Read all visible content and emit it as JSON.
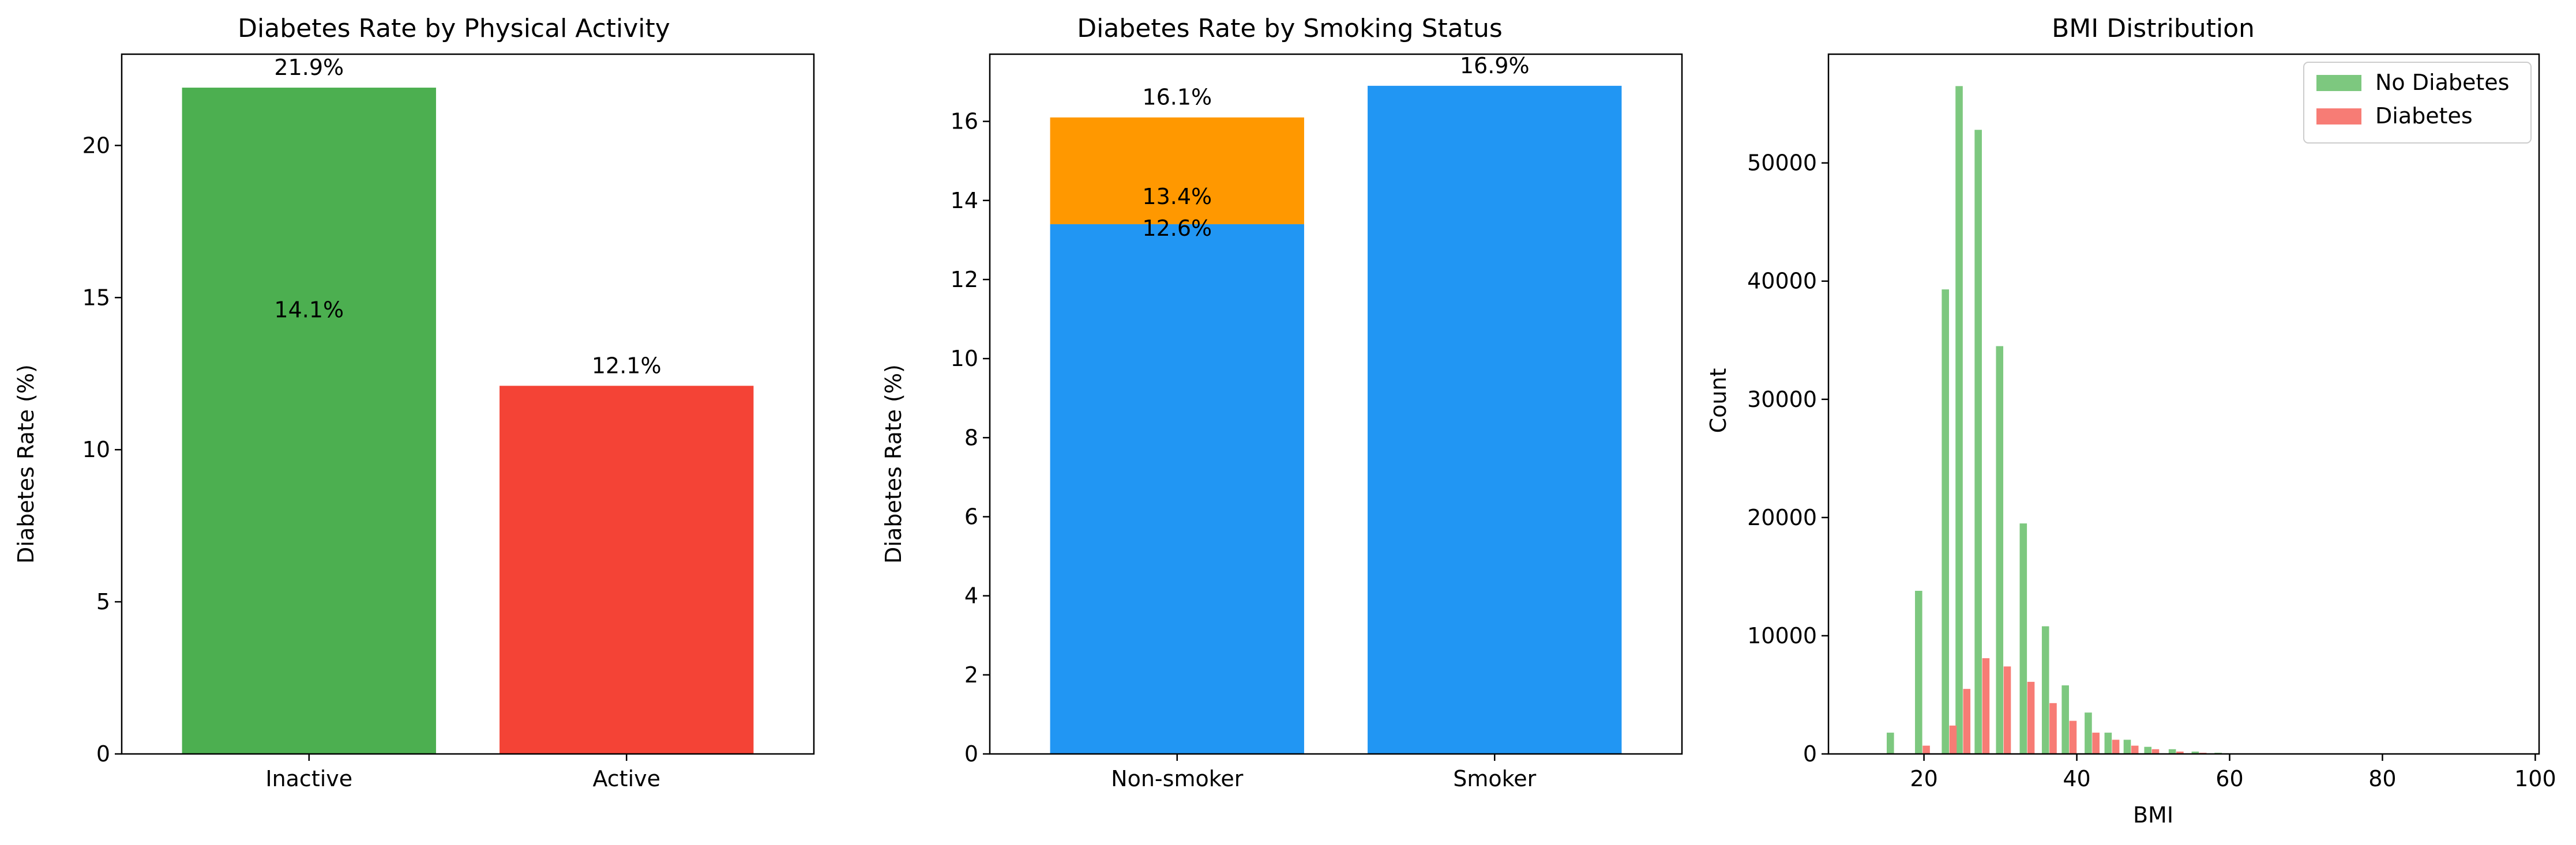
{
  "chart_data": [
    {
      "type": "bar",
      "title": "Diabetes Rate by Physical Activity",
      "xlabel": "",
      "ylabel": "Diabetes Rate (%)",
      "ylim": [
        0,
        23
      ],
      "yticks": [
        0,
        5,
        10,
        15,
        20
      ],
      "categories": [
        "Inactive",
        "Active"
      ],
      "values": [
        21.9,
        12.1
      ],
      "colors": [
        "#4caf50",
        "#f44336"
      ],
      "bar_labels": [
        "21.9%",
        "12.1%"
      ],
      "annotations": [
        {
          "text": "14.1%",
          "category": "Inactive",
          "y": 14.6
        }
      ]
    },
    {
      "type": "bar",
      "stacked": true,
      "title": "Diabetes Rate by Smoking Status",
      "xlabel": "",
      "ylabel": "Diabetes Rate (%)",
      "ylim": [
        0,
        17.7
      ],
      "yticks": [
        0,
        2,
        4,
        6,
        8,
        10,
        12,
        14,
        16
      ],
      "categories": [
        "Non-smoker",
        "Smoker"
      ],
      "series": [
        {
          "values": [
            13.4,
            16.9
          ],
          "color": "#2196f3"
        },
        {
          "values": [
            2.7,
            0
          ],
          "color": "#ff9800"
        }
      ],
      "bar_labels": [
        "16.1%",
        "16.9%"
      ],
      "annotations": [
        {
          "text": "13.4%",
          "category": "Non-smoker",
          "y": 14.1
        },
        {
          "text": "12.6%",
          "category": "Non-smoker",
          "y": 13.3
        }
      ]
    },
    {
      "type": "bar",
      "subtype": "histogram",
      "title": "BMI Distribution",
      "xlabel": "BMI",
      "ylabel": "Count",
      "xlim": [
        7.5,
        100.5
      ],
      "ylim": [
        0,
        59200
      ],
      "xticks": [
        20,
        40,
        60,
        80,
        100
      ],
      "yticks": [
        0,
        10000,
        20000,
        30000,
        40000,
        50000
      ],
      "legend_position": "top-right",
      "bin_width": 2.0,
      "bar_width": 0.95,
      "series": [
        {
          "name": "No Diabetes",
          "color": "#7dc87f",
          "x": [
            15.6,
            19.3,
            22.8,
            24.6,
            27.1,
            29.9,
            33.0,
            35.9,
            38.5,
            41.5,
            44.1,
            46.6,
            49.3,
            52.5,
            55.5,
            58.5
          ],
          "values": [
            1800,
            13800,
            39300,
            56500,
            52800,
            34500,
            19500,
            10800,
            5800,
            3500,
            1800,
            1200,
            600,
            400,
            200,
            100
          ]
        },
        {
          "name": "Diabetes",
          "color": "#f77c75",
          "x": [
            20.3,
            23.8,
            25.6,
            28.1,
            30.9,
            34.0,
            36.9,
            39.5,
            42.5,
            45.1,
            47.6,
            50.3,
            53.5,
            56.5
          ],
          "values": [
            700,
            2400,
            5500,
            8100,
            7400,
            6100,
            4300,
            2800,
            1800,
            1200,
            700,
            400,
            200,
            100
          ]
        }
      ]
    }
  ]
}
